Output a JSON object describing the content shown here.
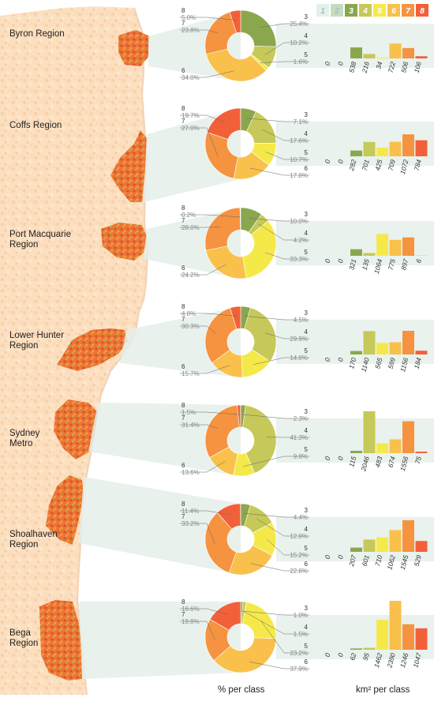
{
  "colors": {
    "1": "#e4f0ea",
    "2": "#c4dcc0",
    "3": "#8ba74e",
    "4": "#c6c859",
    "5": "#f5e94a",
    "6": "#f9c04c",
    "7": "#f59340",
    "8": "#f2603a"
  },
  "legend": [
    "1",
    "2",
    "3",
    "4",
    "5",
    "6",
    "7",
    "8"
  ],
  "footer": {
    "pie_caption": "% per class",
    "bar_caption": "km² per class"
  },
  "chart_data": [
    {
      "type": "pie",
      "region": "Byron Region",
      "classes": [
        "3",
        "4",
        "5",
        "6",
        "7",
        "8"
      ],
      "percent": [
        25.4,
        10.2,
        1.6,
        34.0,
        23.8,
        5.0
      ],
      "percent_labels": [
        "25.4%",
        "10.2%",
        "1.6%",
        "34.0%",
        "23.8%",
        "5.0%"
      ],
      "area_classes": [
        "1",
        "2",
        "3",
        "4",
        "5",
        "6",
        "7",
        "8"
      ],
      "area_km2": [
        0,
        0,
        538,
        216,
        34,
        722,
        506,
        106
      ]
    },
    {
      "type": "pie",
      "region": "Coffs Region",
      "classes": [
        "3",
        "4",
        "5",
        "6",
        "7",
        "8"
      ],
      "percent": [
        7.1,
        17.6,
        10.7,
        17.8,
        27.0,
        19.7
      ],
      "percent_labels": [
        "7.1%",
        "17.6%",
        "10.7%",
        "17.8%",
        "27.0%",
        "19.7%"
      ],
      "area_classes": [
        "1",
        "2",
        "3",
        "4",
        "5",
        "6",
        "7",
        "8"
      ],
      "area_km2": [
        0,
        0,
        282,
        701,
        425,
        709,
        1072,
        784
      ]
    },
    {
      "type": "pie",
      "region": "Port Macquarie Region",
      "classes": [
        "3",
        "4",
        "5",
        "6",
        "7",
        "8"
      ],
      "percent": [
        10.0,
        4.2,
        33.3,
        24.2,
        28.0,
        0.2
      ],
      "percent_labels": [
        "10.0%",
        "4.2%",
        "33.3%",
        "24.2%",
        "28.0%",
        "0.2%"
      ],
      "area_classes": [
        "1",
        "2",
        "3",
        "4",
        "5",
        "6",
        "7",
        "8"
      ],
      "area_km2": [
        0,
        0,
        321,
        135,
        1064,
        775,
        897,
        6
      ]
    },
    {
      "type": "pie",
      "region": "Lower Hunter Region",
      "classes": [
        "3",
        "4",
        "5",
        "6",
        "7",
        "8"
      ],
      "percent": [
        4.5,
        29.9,
        14.8,
        15.7,
        30.3,
        4.8
      ],
      "percent_labels": [
        "4.5%",
        "29.9%",
        "14.8%",
        "15.7%",
        "30.3%",
        "4.8%"
      ],
      "area_classes": [
        "1",
        "2",
        "3",
        "4",
        "5",
        "6",
        "7",
        "8"
      ],
      "area_km2": [
        0,
        0,
        170,
        1140,
        565,
        599,
        1156,
        184
      ]
    },
    {
      "type": "pie",
      "region": "Sydney Metro",
      "classes": [
        "3",
        "4",
        "5",
        "6",
        "7",
        "8"
      ],
      "percent": [
        2.3,
        41.3,
        9.8,
        13.6,
        31.4,
        1.5
      ],
      "percent_labels": [
        "2.3%",
        "41.3%",
        "9.8%",
        "13.6%",
        "31.4%",
        "1.5%"
      ],
      "area_classes": [
        "1",
        "2",
        "3",
        "4",
        "5",
        "6",
        "7",
        "8"
      ],
      "area_km2": [
        0,
        0,
        115,
        2046,
        483,
        674,
        1556,
        75
      ]
    },
    {
      "type": "pie",
      "region": "Shoalhaven Region",
      "classes": [
        "3",
        "4",
        "5",
        "6",
        "7",
        "8"
      ],
      "percent": [
        4.4,
        12.9,
        15.2,
        22.8,
        33.2,
        11.4
      ],
      "percent_labels": [
        "4.4%",
        "12.9%",
        "15.2%",
        "22.8%",
        "33.2%",
        "11.4%"
      ],
      "area_classes": [
        "1",
        "2",
        "3",
        "4",
        "5",
        "6",
        "7",
        "8"
      ],
      "area_km2": [
        0,
        0,
        207,
        601,
        710,
        1062,
        1545,
        529
      ]
    },
    {
      "type": "pie",
      "region": "Bega Region",
      "classes": [
        "3",
        "4",
        "5",
        "6",
        "7",
        "8"
      ],
      "percent": [
        1.0,
        1.5,
        23.2,
        37.9,
        19.8,
        16.6
      ],
      "percent_labels": [
        "1.0%",
        "1.5%",
        "23.2%",
        "37.9%",
        "19.8%",
        "16.6%"
      ],
      "area_classes": [
        "1",
        "2",
        "3",
        "4",
        "5",
        "6",
        "7",
        "8"
      ],
      "area_km2": [
        0,
        0,
        62,
        95,
        1462,
        2390,
        1246,
        1047
      ]
    }
  ]
}
